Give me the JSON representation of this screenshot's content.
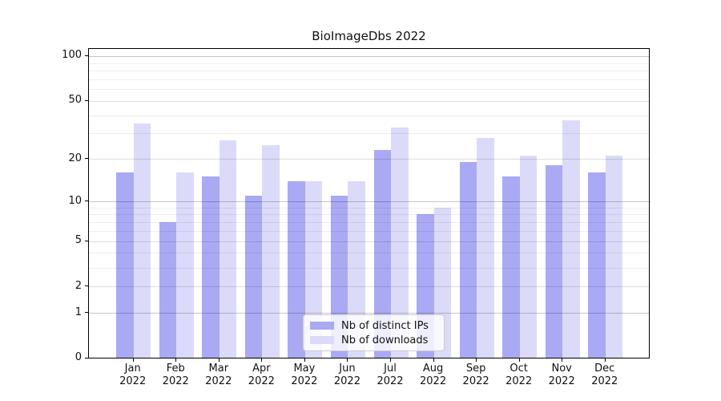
{
  "chart_data": {
    "type": "bar",
    "title": "BioImageDbs 2022",
    "categories": [
      "Jan",
      "Feb",
      "Mar",
      "Apr",
      "May",
      "Jun",
      "Jul",
      "Aug",
      "Sep",
      "Oct",
      "Nov",
      "Dec"
    ],
    "category_year": "2022",
    "series": [
      {
        "name": "Nb of distinct IPs",
        "color": "#a9a9f4",
        "values": [
          16,
          7,
          15,
          11,
          14,
          11,
          23,
          8,
          19,
          15,
          18,
          16
        ]
      },
      {
        "name": "Nb of downloads",
        "color": "#dbdbf9",
        "values": [
          35,
          16,
          27,
          25,
          14,
          14,
          33,
          9,
          28,
          21,
          37,
          21
        ]
      }
    ],
    "xlabel": "",
    "ylabel": "",
    "yscale": "log1p",
    "yticks": [
      0,
      1,
      2,
      5,
      10,
      20,
      50,
      100
    ],
    "minor_gridlines": [
      3,
      4,
      6,
      7,
      8,
      9,
      30,
      40,
      60,
      70,
      80,
      90
    ],
    "ylim": [
      0,
      111
    ],
    "grid": "on",
    "legend_position": "lower-center-inside"
  }
}
